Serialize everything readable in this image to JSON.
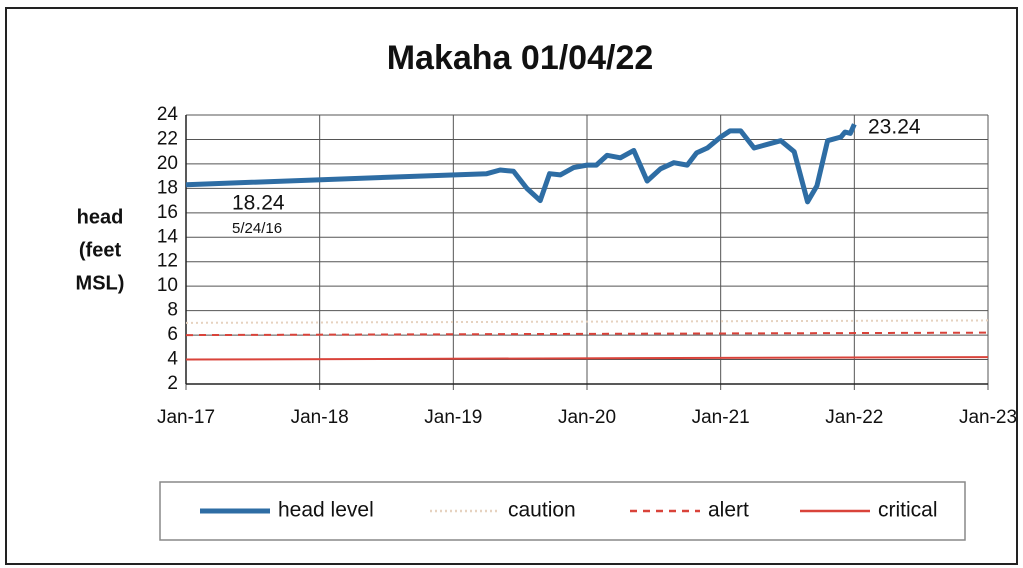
{
  "chart_data": {
    "type": "line",
    "title": "Makaha 01/04/22",
    "ylabel_lines": [
      "head",
      "(feet",
      "MSL)"
    ],
    "xlim": [
      2017,
      2023
    ],
    "xticks": [
      {
        "value": 2017,
        "label": "Jan-17"
      },
      {
        "value": 2018,
        "label": "Jan-18"
      },
      {
        "value": 2019,
        "label": "Jan-19"
      },
      {
        "value": 2020,
        "label": "Jan-20"
      },
      {
        "value": 2021,
        "label": "Jan-21"
      },
      {
        "value": 2022,
        "label": "Jan-22"
      },
      {
        "value": 2023,
        "label": "Jan-23"
      }
    ],
    "ylim": [
      2,
      24
    ],
    "yticks": [
      2,
      4,
      6,
      8,
      10,
      12,
      14,
      16,
      18,
      20,
      22,
      24
    ],
    "grid": true,
    "series": [
      {
        "name": "head level",
        "color": "#2e6da4",
        "style": "solid",
        "x": [
          2017,
          2019.25,
          2019.35,
          2019.45,
          2019.55,
          2019.65,
          2019.72,
          2019.8,
          2019.9,
          2020.0,
          2020.07,
          2020.15,
          2020.25,
          2020.35,
          2020.45,
          2020.55,
          2020.65,
          2020.75,
          2020.82,
          2020.9,
          2021.0,
          2021.07,
          2021.15,
          2021.25,
          2021.35,
          2021.45,
          2021.55,
          2021.65,
          2021.72,
          2021.8,
          2021.9,
          2021.93,
          2021.97,
          2022.0
        ],
        "values": [
          18.3,
          19.2,
          19.5,
          19.4,
          18.0,
          17.0,
          19.2,
          19.1,
          19.7,
          19.9,
          19.9,
          20.7,
          20.5,
          21.1,
          18.6,
          19.6,
          20.1,
          19.9,
          20.9,
          21.3,
          22.2,
          22.7,
          22.7,
          21.3,
          21.6,
          21.9,
          21.0,
          16.9,
          18.2,
          21.9,
          22.2,
          22.6,
          22.5,
          23.24
        ]
      },
      {
        "name": "caution",
        "color": "#e6d2bf",
        "style": "dotted",
        "x": [
          2017,
          2023
        ],
        "values": [
          7,
          7.2
        ]
      },
      {
        "name": "alert",
        "color": "#d9433a",
        "style": "dashed",
        "x": [
          2017,
          2023
        ],
        "values": [
          6,
          6.2
        ]
      },
      {
        "name": "critical",
        "color": "#d9433a",
        "style": "solid",
        "x": [
          2017,
          2023
        ],
        "values": [
          4,
          4.2
        ]
      }
    ],
    "annotations": [
      "18.24",
      "5/24/16",
      "23.24"
    ]
  }
}
